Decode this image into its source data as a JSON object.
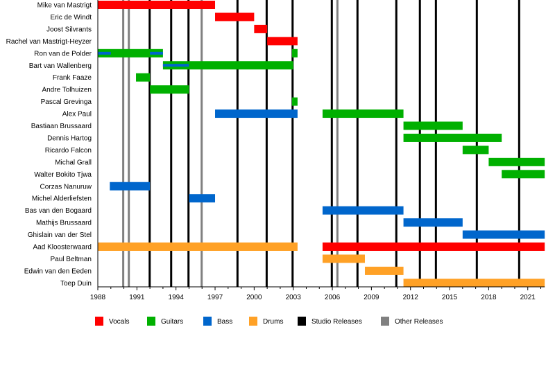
{
  "chart_data": {
    "type": "timeline",
    "title": "",
    "xlim": [
      1988,
      2022.3
    ],
    "x_ticks": [
      "1988",
      "1991",
      "1994",
      "1997",
      "2000",
      "2003",
      "2006",
      "2009",
      "2012",
      "2015",
      "2018",
      "2021"
    ],
    "colors": {
      "Vocals": "#ff0000",
      "Guitars": "#00b000",
      "Bass": "#0066cc",
      "Drums": "#ffa126",
      "Studio Releases": "#000000",
      "Other Releases": "#808080"
    },
    "legend": [
      "Vocals",
      "Guitars",
      "Bass",
      "Drums",
      "Studio Releases",
      "Other Releases"
    ],
    "legend_placement": "bottom",
    "members": [
      {
        "name": "Mike van Mastrigt",
        "bars": [
          {
            "role": "Vocals",
            "start": 1988,
            "end": 1997
          }
        ]
      },
      {
        "name": "Eric de Windt",
        "bars": [
          {
            "role": "Vocals",
            "start": 1997,
            "end": 2000
          }
        ]
      },
      {
        "name": "Joost Silvrants",
        "bars": [
          {
            "role": "Vocals",
            "start": 2000,
            "end": 2001
          }
        ]
      },
      {
        "name": "Rachel van Mastrigt-Heyzer",
        "bars": [
          {
            "role": "Vocals",
            "start": 2001,
            "end": 2003.33
          }
        ]
      },
      {
        "name": "Ron van de Polder",
        "bars": [
          {
            "role": "Guitars",
            "start": 1988,
            "end": 1993
          },
          {
            "role": "Guitars",
            "start": 2002.9,
            "end": 2003.33
          }
        ],
        "stripes": [
          {
            "role": "Bass",
            "start": 1988,
            "end": 1989
          },
          {
            "role": "Bass",
            "start": 1992,
            "end": 1993
          }
        ]
      },
      {
        "name": "Bart van Wallenberg",
        "bars": [
          {
            "role": "Guitars",
            "start": 1993,
            "end": 2003
          }
        ],
        "stripes": [
          {
            "role": "Bass",
            "start": 1993,
            "end": 1995
          }
        ]
      },
      {
        "name": "Frank Faaze",
        "bars": [
          {
            "role": "Guitars",
            "start": 1990.93,
            "end": 1992
          }
        ]
      },
      {
        "name": "Andre Tolhuizen",
        "bars": [
          {
            "role": "Guitars",
            "start": 1992,
            "end": 1995
          }
        ]
      },
      {
        "name": "Pascal Grevinga",
        "bars": [
          {
            "role": "Guitars",
            "start": 2002.9,
            "end": 2003.33
          }
        ]
      },
      {
        "name": "Alex Paul",
        "bars": [
          {
            "role": "Bass",
            "start": 1997,
            "end": 2003.33
          },
          {
            "role": "Guitars",
            "start": 2005.25,
            "end": 2011.46
          }
        ]
      },
      {
        "name": "Bastiaan Brussaard",
        "bars": [
          {
            "role": "Guitars",
            "start": 2011.46,
            "end": 2016
          }
        ]
      },
      {
        "name": "Dennis Hartog",
        "bars": [
          {
            "role": "Guitars",
            "start": 2011.46,
            "end": 2019
          }
        ]
      },
      {
        "name": "Ricardo Falcon",
        "bars": [
          {
            "role": "Guitars",
            "start": 2016,
            "end": 2018
          }
        ]
      },
      {
        "name": "Michal Grall",
        "bars": [
          {
            "role": "Guitars",
            "start": 2018,
            "end": 2022.3
          }
        ]
      },
      {
        "name": "Walter Bokito Tjwa",
        "bars": [
          {
            "role": "Guitars",
            "start": 2019,
            "end": 2022.3
          }
        ]
      },
      {
        "name": "Corzas Nanuruw",
        "bars": [
          {
            "role": "Bass",
            "start": 1988.92,
            "end": 1992
          }
        ]
      },
      {
        "name": "Michel Alderliefsten",
        "bars": [
          {
            "role": "Bass",
            "start": 1995,
            "end": 1997
          }
        ]
      },
      {
        "name": "Bas van den Bogaard",
        "bars": [
          {
            "role": "Bass",
            "start": 2005.25,
            "end": 2011.46
          }
        ]
      },
      {
        "name": "Mathijs Brussaard",
        "bars": [
          {
            "role": "Bass",
            "start": 2011.46,
            "end": 2016
          }
        ]
      },
      {
        "name": "Ghislain van der Stel",
        "bars": [
          {
            "role": "Bass",
            "start": 2016,
            "end": 2022.3
          }
        ]
      },
      {
        "name": "Aad Kloosterwaard",
        "bars": [
          {
            "role": "Drums",
            "start": 1988,
            "end": 2003.33
          },
          {
            "role": "Vocals",
            "start": 2005.25,
            "end": 2022.3
          }
        ]
      },
      {
        "name": "Paul Beltman",
        "bars": [
          {
            "role": "Drums",
            "start": 2005.25,
            "end": 2008.5
          }
        ]
      },
      {
        "name": "Edwin van den Eeden",
        "bars": [
          {
            "role": "Drums",
            "start": 2008.5,
            "end": 2011.46
          }
        ]
      },
      {
        "name": "Toep Duin",
        "bars": [
          {
            "role": "Drums",
            "start": 2011.46,
            "end": 2022.3
          }
        ]
      }
    ],
    "studio_releases": [
      1991.98,
      1993.63,
      1994.96,
      1998.72,
      2000.96,
      2002.95,
      2005.96,
      2007.93,
      2010.91,
      2012.72,
      2013.95,
      2017.09,
      2020.34
    ],
    "other_releases": [
      1989.95,
      1990.38,
      1995.97,
      2006.39
    ]
  }
}
